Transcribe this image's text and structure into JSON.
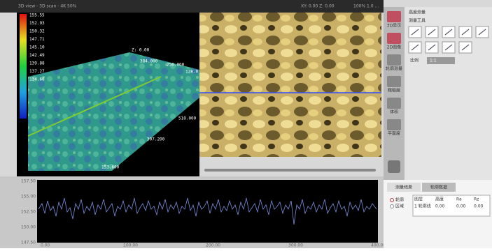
{
  "titlebar": {
    "left": "3D view - 3D scan - 4K 50%",
    "center": "XY: 0.00 Z: 0.00",
    "right": "100% 1.0 ..."
  },
  "colorbar": {
    "labels": [
      "155.55",
      "152.93",
      "150.32",
      "147.71",
      "145.10",
      "142.49",
      "139.88",
      "137.27",
      "134.66"
    ]
  },
  "view3d": {
    "axis_labels": [
      "384.000",
      "256.000",
      "128.0",
      "510.000",
      "307.200",
      "153.600"
    ],
    "corner": "Z: 0.00"
  },
  "sidebar": {
    "buttons": [
      "3D显示",
      "2D图像",
      "轮廓测量",
      "粗糙度",
      "体积",
      "平面度"
    ]
  },
  "tools": {
    "title": "高度测量",
    "group": "测量工具",
    "scale_label": "比例",
    "scale_value": "1:1"
  },
  "profile": {
    "yticks": [
      "157.50",
      "155.00",
      "152.50",
      "150.00",
      "147.50"
    ],
    "xticks": [
      "0.00",
      "100.00",
      "200.00",
      "300.00",
      "400.00"
    ]
  },
  "results": {
    "tabs": [
      "测量结果",
      "轮廓数据"
    ],
    "options": [
      "轮廓",
      "区域"
    ],
    "table": {
      "header": [
        "图层",
        "高度",
        "Ra",
        "Rz"
      ],
      "rows": [
        [
          "1 轮廓线",
          "0.00",
          "0.00",
          "0.00"
        ]
      ]
    }
  }
}
